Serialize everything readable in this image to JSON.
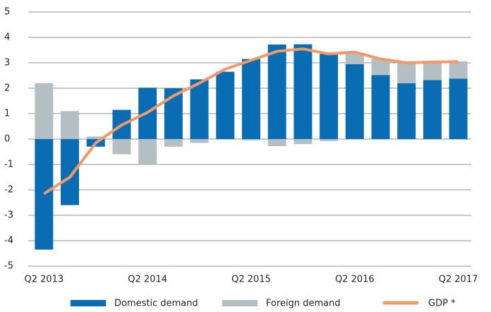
{
  "chart_data": {
    "type": "bar",
    "categories": [
      "Q2 2013",
      null,
      null,
      null,
      "Q2 2014",
      null,
      null,
      null,
      "Q2 2015",
      null,
      null,
      null,
      "Q2 2016",
      null,
      null,
      null,
      "Q2 2017"
    ],
    "series": [
      {
        "name": "Domestic demand",
        "color": "#0a6db3",
        "values": [
          -4.35,
          -2.6,
          -0.3,
          1.15,
          2.02,
          2.0,
          2.35,
          2.65,
          3.15,
          3.72,
          3.73,
          3.35,
          2.95,
          2.52,
          2.2,
          2.32,
          2.38
        ]
      },
      {
        "name": "Foreign demand",
        "color": "#b4bfc4",
        "values": [
          2.2,
          1.1,
          0.1,
          -0.6,
          -1.0,
          -0.3,
          -0.15,
          0,
          -0.05,
          -0.28,
          -0.2,
          -0.08,
          0.45,
          0.65,
          0.8,
          0.72,
          0.68
        ]
      },
      {
        "name": "GDP *",
        "type": "line",
        "color": "#f09a6a",
        "values": [
          -2.15,
          -1.5,
          -0.15,
          0.55,
          1.05,
          1.7,
          2.2,
          2.75,
          3.1,
          3.45,
          3.55,
          3.35,
          3.42,
          3.15,
          3.0,
          3.03,
          3.05
        ]
      }
    ],
    "ylim": [
      -5,
      5
    ],
    "yticks": [
      -5,
      -4,
      -3,
      -2,
      -1,
      0,
      1,
      2,
      3,
      4,
      5
    ],
    "grid": true,
    "legend": "bottom"
  }
}
